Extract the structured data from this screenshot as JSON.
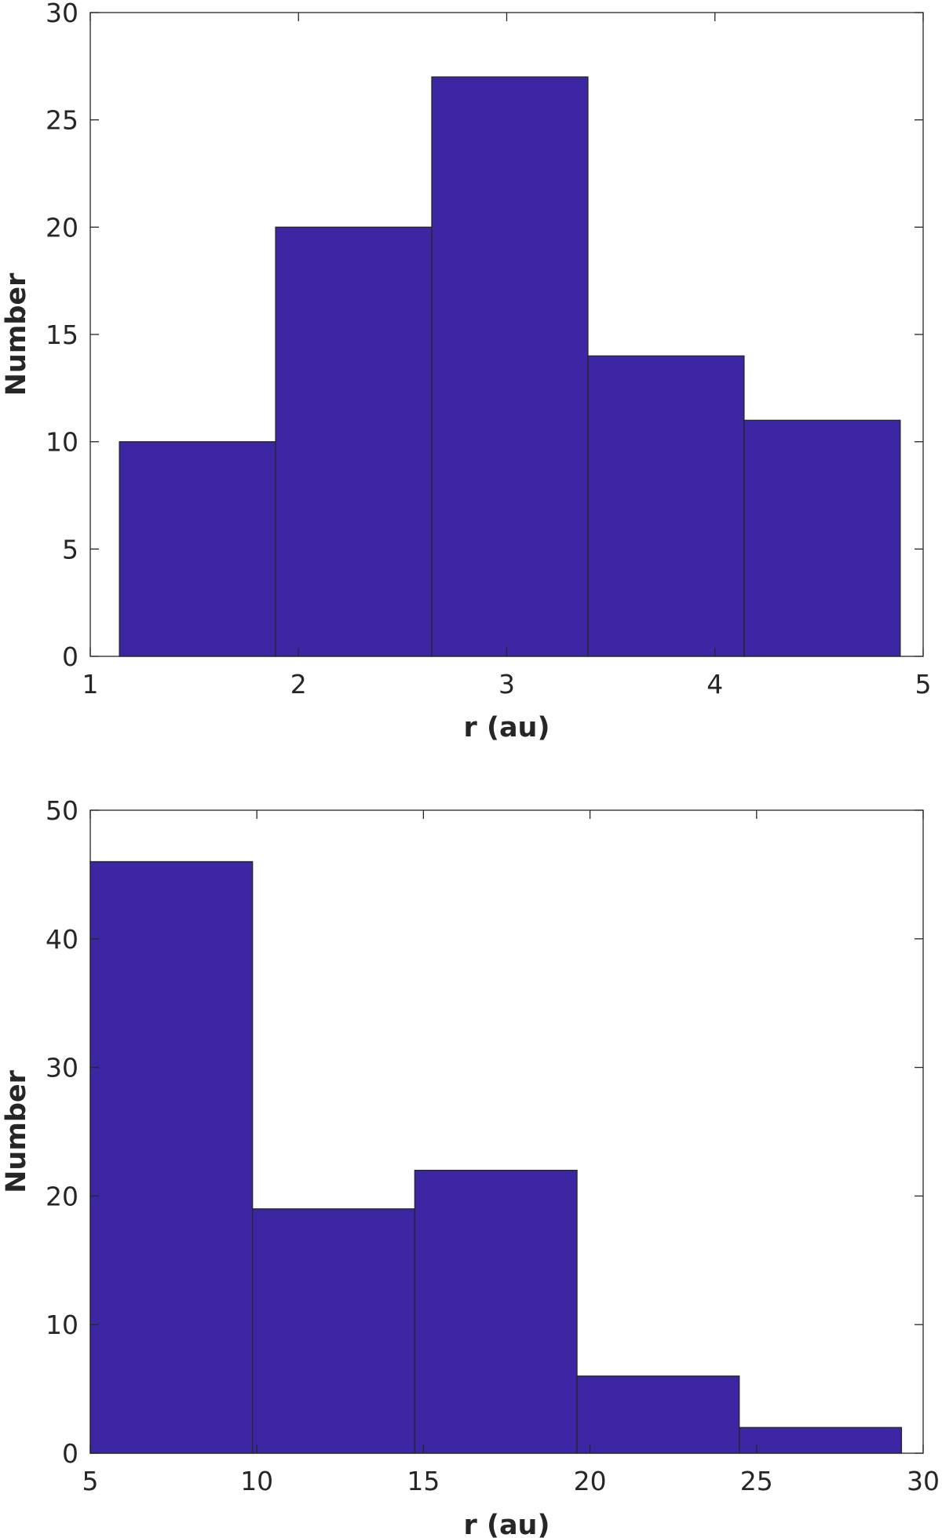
{
  "chart_data": [
    {
      "type": "bar",
      "histogram": true,
      "bin_edges": [
        1.14,
        1.89,
        2.64,
        3.39,
        4.14,
        4.89
      ],
      "values": [
        10,
        20,
        27,
        14,
        11
      ],
      "xlabel": "r (au)",
      "ylabel": "Number",
      "xlim": [
        1,
        5
      ],
      "ylim": [
        0,
        30
      ],
      "xticks": [
        1,
        2,
        3,
        4,
        5
      ],
      "yticks": [
        0,
        5,
        10,
        15,
        20,
        25,
        30
      ],
      "bar_color": "#3c26a4",
      "grid": false
    },
    {
      "type": "bar",
      "histogram": true,
      "bin_edges": [
        5,
        9.87,
        14.74,
        19.61,
        24.48,
        29.35
      ],
      "values": [
        46,
        19,
        22,
        6,
        2
      ],
      "xlabel": "r (au)",
      "ylabel": "Number",
      "xlim": [
        5,
        30
      ],
      "ylim": [
        0,
        50
      ],
      "xticks": [
        5,
        10,
        15,
        20,
        25,
        30
      ],
      "yticks": [
        0,
        10,
        20,
        30,
        40,
        50
      ],
      "bar_color": "#3c26a4",
      "grid": false
    }
  ]
}
